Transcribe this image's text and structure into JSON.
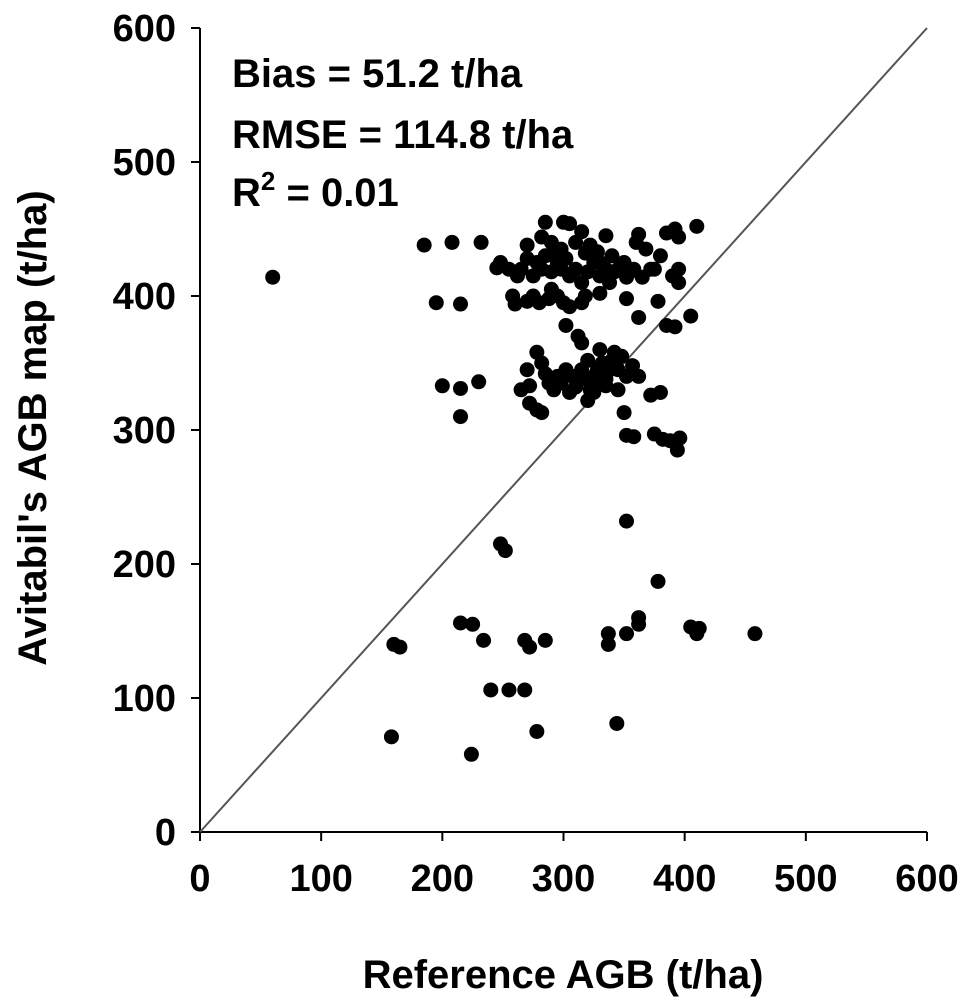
{
  "chart_data": {
    "type": "scatter",
    "xlabel": "Reference AGB (t/ha)",
    "ylabel": "Avitabil's AGB map (t/ha)",
    "xlim": [
      0,
      600
    ],
    "ylim": [
      0,
      600
    ],
    "xticks": [
      "0",
      "100",
      "200",
      "300",
      "400",
      "500",
      "600"
    ],
    "yticks": [
      "0",
      "100",
      "200",
      "300",
      "400",
      "500",
      "600"
    ],
    "grid": false,
    "reference_line": {
      "x": [
        0,
        600
      ],
      "y": [
        0,
        600
      ]
    },
    "annotations": {
      "bias": "Bias = 51.2 t/ha",
      "rmse": "RMSE = 114.8 t/ha",
      "r2_prefix": "R",
      "r2_sup": "2",
      "r2_suffix": " = 0.01"
    },
    "points": [
      [
        60,
        414
      ],
      [
        185,
        438
      ],
      [
        208,
        440
      ],
      [
        232,
        440
      ],
      [
        245,
        421
      ],
      [
        248,
        425
      ],
      [
        195,
        395
      ],
      [
        215,
        394
      ],
      [
        200,
        333
      ],
      [
        215,
        331
      ],
      [
        230,
        336
      ],
      [
        215,
        310
      ],
      [
        270,
        438
      ],
      [
        282,
        444
      ],
      [
        285,
        455
      ],
      [
        290,
        440
      ],
      [
        292,
        430
      ],
      [
        298,
        435
      ],
      [
        300,
        455
      ],
      [
        305,
        454
      ],
      [
        310,
        440
      ],
      [
        315,
        448
      ],
      [
        318,
        432
      ],
      [
        322,
        438
      ],
      [
        328,
        433
      ],
      [
        330,
        425
      ],
      [
        335,
        445
      ],
      [
        340,
        430
      ],
      [
        345,
        420
      ],
      [
        350,
        425
      ],
      [
        355,
        418
      ],
      [
        360,
        440
      ],
      [
        362,
        446
      ],
      [
        368,
        435
      ],
      [
        375,
        420
      ],
      [
        380,
        430
      ],
      [
        385,
        447
      ],
      [
        392,
        450
      ],
      [
        395,
        444
      ],
      [
        410,
        452
      ],
      [
        255,
        420
      ],
      [
        262,
        415
      ],
      [
        265,
        420
      ],
      [
        270,
        428
      ],
      [
        275,
        415
      ],
      [
        278,
        425
      ],
      [
        282,
        420
      ],
      [
        285,
        430
      ],
      [
        290,
        418
      ],
      [
        295,
        425
      ],
      [
        298,
        420
      ],
      [
        302,
        428
      ],
      [
        305,
        415
      ],
      [
        310,
        420
      ],
      [
        315,
        410
      ],
      [
        320,
        418
      ],
      [
        325,
        425
      ],
      [
        330,
        415
      ],
      [
        335,
        420
      ],
      [
        338,
        410
      ],
      [
        342,
        418
      ],
      [
        348,
        422
      ],
      [
        352,
        414
      ],
      [
        358,
        420
      ],
      [
        365,
        414
      ],
      [
        372,
        420
      ],
      [
        390,
        415
      ],
      [
        395,
        420
      ],
      [
        395,
        410
      ],
      [
        258,
        400
      ],
      [
        260,
        394
      ],
      [
        270,
        396
      ],
      [
        275,
        400
      ],
      [
        280,
        395
      ],
      [
        288,
        398
      ],
      [
        290,
        405
      ],
      [
        295,
        400
      ],
      [
        300,
        395
      ],
      [
        305,
        392
      ],
      [
        315,
        395
      ],
      [
        318,
        400
      ],
      [
        330,
        402
      ],
      [
        352,
        398
      ],
      [
        378,
        396
      ],
      [
        385,
        378
      ],
      [
        392,
        377
      ],
      [
        405,
        385
      ],
      [
        362,
        384
      ],
      [
        302,
        378
      ],
      [
        312,
        370
      ],
      [
        315,
        365
      ],
      [
        270,
        345
      ],
      [
        278,
        358
      ],
      [
        282,
        350
      ],
      [
        285,
        342
      ],
      [
        288,
        335
      ],
      [
        292,
        330
      ],
      [
        295,
        340
      ],
      [
        298,
        335
      ],
      [
        302,
        345
      ],
      [
        305,
        328
      ],
      [
        308,
        340
      ],
      [
        310,
        332
      ],
      [
        315,
        345
      ],
      [
        318,
        338
      ],
      [
        320,
        352
      ],
      [
        322,
        330
      ],
      [
        325,
        340
      ],
      [
        328,
        345
      ],
      [
        330,
        360
      ],
      [
        332,
        350
      ],
      [
        335,
        338
      ],
      [
        338,
        345
      ],
      [
        340,
        352
      ],
      [
        342,
        358
      ],
      [
        345,
        345
      ],
      [
        348,
        355
      ],
      [
        352,
        340
      ],
      [
        357,
        348
      ],
      [
        362,
        340
      ],
      [
        265,
        330
      ],
      [
        272,
        333
      ],
      [
        278,
        315
      ],
      [
        272,
        320
      ],
      [
        282,
        313
      ],
      [
        320,
        322
      ],
      [
        325,
        328
      ],
      [
        328,
        335
      ],
      [
        335,
        333
      ],
      [
        345,
        330
      ],
      [
        350,
        313
      ],
      [
        352,
        296
      ],
      [
        358,
        295
      ],
      [
        372,
        326
      ],
      [
        380,
        328
      ],
      [
        375,
        297
      ],
      [
        382,
        293
      ],
      [
        388,
        292
      ],
      [
        394,
        285
      ],
      [
        396,
        294
      ],
      [
        352,
        232
      ],
      [
        248,
        215
      ],
      [
        252,
        210
      ],
      [
        378,
        187
      ],
      [
        160,
        140
      ],
      [
        165,
        138
      ],
      [
        215,
        156
      ],
      [
        225,
        155
      ],
      [
        234,
        143
      ],
      [
        268,
        143
      ],
      [
        272,
        138
      ],
      [
        285,
        143
      ],
      [
        337,
        148
      ],
      [
        337,
        140
      ],
      [
        352,
        148
      ],
      [
        362,
        160
      ],
      [
        362,
        155
      ],
      [
        405,
        153
      ],
      [
        410,
        148
      ],
      [
        412,
        152
      ],
      [
        458,
        148
      ],
      [
        240,
        106
      ],
      [
        255,
        106
      ],
      [
        268,
        106
      ],
      [
        158,
        71
      ],
      [
        278,
        75
      ],
      [
        224,
        58
      ],
      [
        344,
        81
      ]
    ]
  }
}
